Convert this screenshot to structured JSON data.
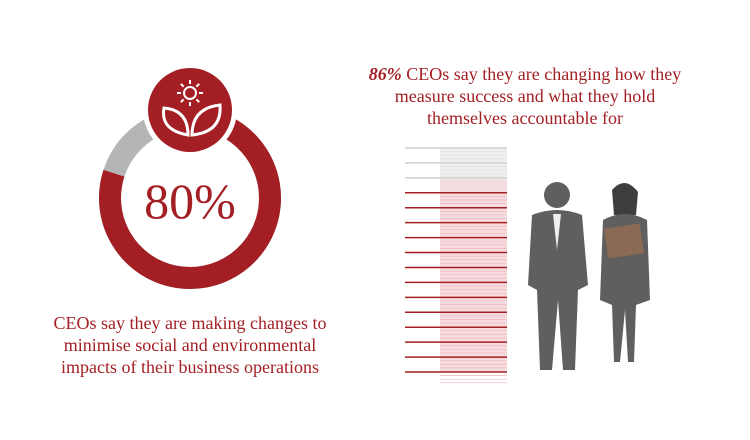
{
  "chart_data": [
    {
      "type": "donut",
      "values": [
        80
      ],
      "value_labels": [
        "80%"
      ],
      "ylim": [
        0,
        100
      ],
      "caption": "CEOs say they are making changes to minimise social and environmental impacts of their business operations",
      "color": "#a31f24",
      "track_color": "#b5b5b5"
    },
    {
      "type": "meter",
      "values": [
        86
      ],
      "value_labels": [
        "86%"
      ],
      "ylim": [
        0,
        100
      ],
      "title": "CEOs say they are changing how they measure success and what they hold themselves accountable for",
      "color": "#a31f24",
      "track_color": "#cfcfcf"
    }
  ]
}
